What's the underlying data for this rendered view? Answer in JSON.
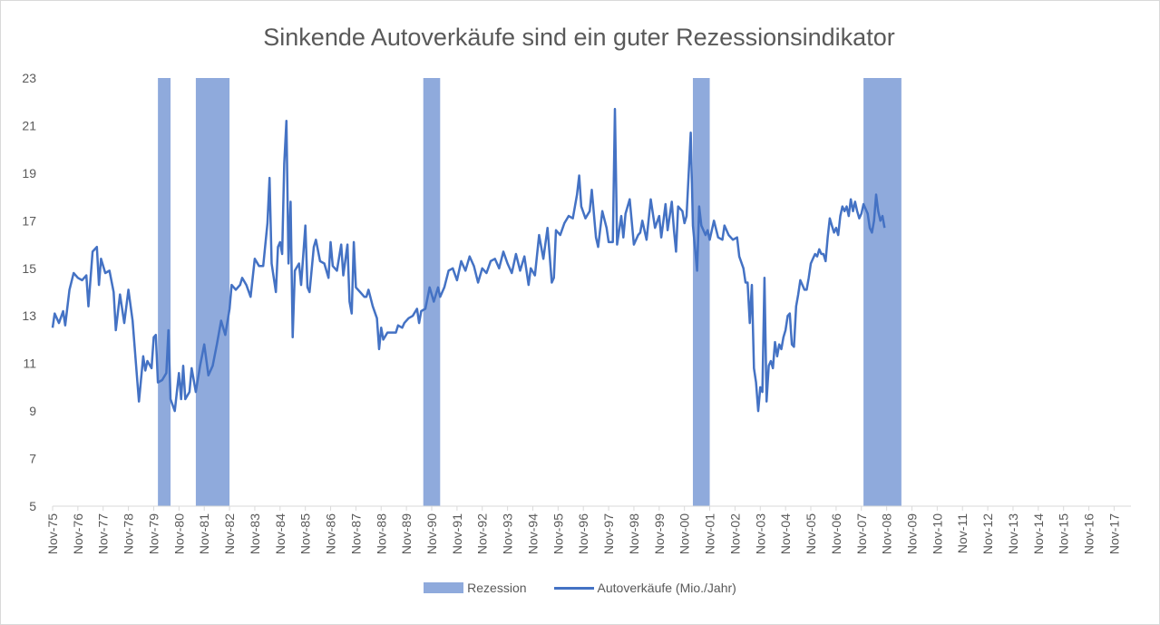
{
  "chart_data": {
    "type": "line",
    "title": "Sinkende Autoverkäufe sind ein guter Rezessionsindikator",
    "ylim": [
      5,
      23
    ],
    "yticks": [
      5,
      7,
      9,
      11,
      13,
      15,
      17,
      19,
      21,
      23
    ],
    "x_start": "Nov-75",
    "x_end": "Jul-18",
    "grid": false,
    "legend_position": "bottom",
    "x_tick_labels": [
      "Nov-75",
      "Nov-76",
      "Nov-77",
      "Nov-78",
      "Nov-79",
      "Nov-80",
      "Nov-81",
      "Nov-82",
      "Nov-83",
      "Nov-84",
      "Nov-85",
      "Nov-86",
      "Nov-87",
      "Nov-88",
      "Nov-89",
      "Nov-90",
      "Nov-91",
      "Nov-92",
      "Nov-93",
      "Nov-94",
      "Nov-95",
      "Nov-96",
      "Nov-97",
      "Nov-98",
      "Nov-99",
      "Nov-00",
      "Nov-01",
      "Nov-02",
      "Nov-03",
      "Nov-04",
      "Nov-05",
      "Nov-06",
      "Nov-07",
      "Nov-08",
      "Nov-09",
      "Nov-10",
      "Nov-11",
      "Nov-12",
      "Nov-13",
      "Nov-14",
      "Nov-15",
      "Nov-16",
      "Nov-17"
    ],
    "recessions": [
      {
        "start": "Jan-80",
        "end": "Jul-80"
      },
      {
        "start": "Jul-81",
        "end": "Nov-82"
      },
      {
        "start": "Jul-90",
        "end": "Mar-91"
      },
      {
        "start": "Mar-01",
        "end": "Nov-01"
      },
      {
        "start": "Dec-07",
        "end": "Jun-09"
      }
    ],
    "series": [
      {
        "name": "Autoverkäufe (Mio./Jahr)",
        "type": "line",
        "color": "#4472c4",
        "points": [
          [
            "Nov-75",
            12.5
          ],
          [
            "Dec-75",
            13.1
          ],
          [
            "Feb-76",
            12.7
          ],
          [
            "Apr-76",
            13.2
          ],
          [
            "May-76",
            12.6
          ],
          [
            "Jul-76",
            14.1
          ],
          [
            "Sep-76",
            14.8
          ],
          [
            "Nov-76",
            14.6
          ],
          [
            "Jan-77",
            14.5
          ],
          [
            "Mar-77",
            14.7
          ],
          [
            "Apr-77",
            13.4
          ],
          [
            "Jun-77",
            15.7
          ],
          [
            "Aug-77",
            15.9
          ],
          [
            "Sep-77",
            14.3
          ],
          [
            "Oct-77",
            15.4
          ],
          [
            "Dec-77",
            14.8
          ],
          [
            "Feb-78",
            14.9
          ],
          [
            "Apr-78",
            14.0
          ],
          [
            "May-78",
            12.4
          ],
          [
            "Jul-78",
            13.9
          ],
          [
            "Sep-78",
            12.7
          ],
          [
            "Nov-78",
            14.1
          ],
          [
            "Jan-79",
            12.8
          ],
          [
            "Mar-79",
            10.5
          ],
          [
            "Apr-79",
            9.4
          ],
          [
            "Jun-79",
            11.3
          ],
          [
            "Jul-79",
            10.7
          ],
          [
            "Aug-79",
            11.1
          ],
          [
            "Oct-79",
            10.8
          ],
          [
            "Nov-79",
            12.1
          ],
          [
            "Dec-79",
            12.2
          ],
          [
            "Jan-80",
            10.2
          ],
          [
            "Mar-80",
            10.3
          ],
          [
            "May-80",
            10.6
          ],
          [
            "Jun-80",
            12.4
          ],
          [
            "Jul-80",
            9.5
          ],
          [
            "Sep-80",
            9.0
          ],
          [
            "Nov-80",
            10.6
          ],
          [
            "Dec-80",
            9.5
          ],
          [
            "Jan-81",
            10.9
          ],
          [
            "Feb-81",
            9.5
          ],
          [
            "Apr-81",
            9.8
          ],
          [
            "May-81",
            10.8
          ],
          [
            "Jul-81",
            9.8
          ],
          [
            "Sep-81",
            10.9
          ],
          [
            "Nov-81",
            11.8
          ],
          [
            "Jan-82",
            10.5
          ],
          [
            "Mar-82",
            10.9
          ],
          [
            "May-82",
            11.8
          ],
          [
            "Jul-82",
            12.8
          ],
          [
            "Sep-82",
            12.2
          ],
          [
            "Nov-82",
            13.3
          ],
          [
            "Dec-82",
            14.3
          ],
          [
            "Feb-83",
            14.1
          ],
          [
            "Apr-83",
            14.3
          ],
          [
            "May-83",
            14.6
          ],
          [
            "Jul-83",
            14.3
          ],
          [
            "Sep-83",
            13.8
          ],
          [
            "Nov-83",
            15.4
          ],
          [
            "Jan-84",
            15.1
          ],
          [
            "Mar-84",
            15.1
          ],
          [
            "May-84",
            16.9
          ],
          [
            "Jun-84",
            18.8
          ],
          [
            "Jul-84",
            15.2
          ],
          [
            "Sep-84",
            14.0
          ],
          [
            "Oct-84",
            15.9
          ],
          [
            "Nov-84",
            16.1
          ],
          [
            "Dec-84",
            15.6
          ],
          [
            "Jan-85",
            19.4
          ],
          [
            "Feb-85",
            21.2
          ],
          [
            "Mar-85",
            15.2
          ],
          [
            "Apr-85",
            17.8
          ],
          [
            "May-85",
            12.1
          ],
          [
            "Jun-85",
            14.9
          ],
          [
            "Aug-85",
            15.2
          ],
          [
            "Sep-85",
            14.3
          ],
          [
            "Nov-85",
            16.8
          ],
          [
            "Dec-85",
            14.2
          ],
          [
            "Jan-86",
            14.0
          ],
          [
            "Mar-86",
            15.9
          ],
          [
            "Apr-86",
            16.2
          ],
          [
            "Jun-86",
            15.3
          ],
          [
            "Aug-86",
            15.2
          ],
          [
            "Oct-86",
            14.6
          ],
          [
            "Nov-86",
            16.1
          ],
          [
            "Dec-86",
            15.1
          ],
          [
            "Feb-87",
            14.9
          ],
          [
            "Apr-87",
            16.0
          ],
          [
            "May-87",
            14.7
          ],
          [
            "Jul-87",
            16.0
          ],
          [
            "Aug-87",
            13.6
          ],
          [
            "Sep-87",
            13.1
          ],
          [
            "Oct-87",
            16.1
          ],
          [
            "Nov-87",
            14.2
          ],
          [
            "Jan-88",
            14.0
          ],
          [
            "Mar-88",
            13.8
          ],
          [
            "Apr-88",
            13.8
          ],
          [
            "May-88",
            14.1
          ],
          [
            "Jul-88",
            13.4
          ],
          [
            "Sep-88",
            12.9
          ],
          [
            "Oct-88",
            11.6
          ],
          [
            "Nov-88",
            12.5
          ],
          [
            "Dec-88",
            12.0
          ],
          [
            "Feb-89",
            12.3
          ],
          [
            "Apr-89",
            12.3
          ],
          [
            "Jun-89",
            12.3
          ],
          [
            "Jul-89",
            12.6
          ],
          [
            "Sep-89",
            12.5
          ],
          [
            "Oct-89",
            12.7
          ],
          [
            "Dec-89",
            12.9
          ],
          [
            "Feb-90",
            13.0
          ],
          [
            "Apr-90",
            13.3
          ],
          [
            "May-90",
            12.7
          ],
          [
            "Jun-90",
            13.2
          ],
          [
            "Aug-90",
            13.3
          ],
          [
            "Oct-90",
            14.2
          ],
          [
            "Dec-90",
            13.6
          ],
          [
            "Feb-91",
            14.2
          ],
          [
            "Mar-91",
            13.8
          ],
          [
            "May-91",
            14.2
          ],
          [
            "Jul-91",
            14.9
          ],
          [
            "Sep-91",
            15.0
          ],
          [
            "Nov-91",
            14.5
          ],
          [
            "Jan-92",
            15.3
          ],
          [
            "Mar-92",
            14.9
          ],
          [
            "May-92",
            15.5
          ],
          [
            "Jul-92",
            15.1
          ],
          [
            "Sep-92",
            14.4
          ],
          [
            "Nov-92",
            15.0
          ],
          [
            "Jan-93",
            14.8
          ],
          [
            "Mar-93",
            15.3
          ],
          [
            "May-93",
            15.4
          ],
          [
            "Jul-93",
            15.0
          ],
          [
            "Sep-93",
            15.7
          ],
          [
            "Nov-93",
            15.2
          ],
          [
            "Jan-94",
            14.8
          ],
          [
            "Mar-94",
            15.6
          ],
          [
            "May-94",
            14.9
          ],
          [
            "Jul-94",
            15.5
          ],
          [
            "Sep-94",
            14.3
          ],
          [
            "Oct-94",
            15.0
          ],
          [
            "Dec-94",
            14.7
          ],
          [
            "Feb-95",
            16.4
          ],
          [
            "Apr-95",
            15.4
          ],
          [
            "Jun-95",
            16.7
          ],
          [
            "Aug-95",
            14.4
          ],
          [
            "Sep-95",
            14.6
          ],
          [
            "Oct-95",
            16.6
          ],
          [
            "Dec-95",
            16.4
          ],
          [
            "Feb-96",
            16.9
          ],
          [
            "Apr-96",
            17.2
          ],
          [
            "Jun-96",
            17.1
          ],
          [
            "Aug-96",
            18.1
          ],
          [
            "Sep-96",
            18.9
          ],
          [
            "Oct-96",
            17.6
          ],
          [
            "Dec-96",
            17.1
          ],
          [
            "Feb-97",
            17.4
          ],
          [
            "Mar-97",
            18.3
          ],
          [
            "May-97",
            16.3
          ],
          [
            "Jun-97",
            15.9
          ],
          [
            "Aug-97",
            17.4
          ],
          [
            "Oct-97",
            16.7
          ],
          [
            "Nov-97",
            16.1
          ],
          [
            "Jan-98",
            16.1
          ],
          [
            "Feb-98",
            21.7
          ],
          [
            "Mar-98",
            16.0
          ],
          [
            "May-98",
            17.2
          ],
          [
            "Jun-98",
            16.3
          ],
          [
            "Jul-98",
            17.3
          ],
          [
            "Sep-98",
            17.9
          ],
          [
            "Nov-98",
            16.0
          ],
          [
            "Jan-99",
            16.4
          ],
          [
            "Feb-99",
            16.5
          ],
          [
            "Mar-99",
            17.0
          ],
          [
            "May-99",
            16.2
          ],
          [
            "Jul-99",
            17.9
          ],
          [
            "Sep-99",
            16.7
          ],
          [
            "Nov-99",
            17.2
          ],
          [
            "Dec-99",
            16.3
          ],
          [
            "Jan-00",
            17.0
          ],
          [
            "Feb-00",
            17.7
          ],
          [
            "Mar-00",
            16.6
          ],
          [
            "May-00",
            17.8
          ],
          [
            "Jun-00",
            16.6
          ],
          [
            "Jul-00",
            15.7
          ],
          [
            "Aug-00",
            17.6
          ],
          [
            "Oct-00",
            17.4
          ],
          [
            "Nov-00",
            16.9
          ],
          [
            "Dec-00",
            17.2
          ],
          [
            "Feb-01",
            20.7
          ],
          [
            "Mar-01",
            16.8
          ],
          [
            "May-01",
            14.9
          ],
          [
            "Jun-01",
            17.6
          ],
          [
            "Jul-01",
            16.8
          ],
          [
            "Sep-01",
            16.4
          ],
          [
            "Oct-01",
            16.6
          ],
          [
            "Nov-01",
            16.2
          ],
          [
            "Jan-02",
            17.0
          ],
          [
            "Mar-02",
            16.3
          ],
          [
            "May-02",
            16.2
          ],
          [
            "Jun-02",
            16.8
          ],
          [
            "Aug-02",
            16.4
          ],
          [
            "Oct-02",
            16.2
          ],
          [
            "Dec-02",
            16.3
          ],
          [
            "Jan-03",
            15.5
          ],
          [
            "Mar-03",
            15.0
          ],
          [
            "Apr-03",
            14.4
          ],
          [
            "May-03",
            14.4
          ],
          [
            "Jun-03",
            12.7
          ],
          [
            "Jul-03",
            14.3
          ],
          [
            "Aug-03",
            10.8
          ],
          [
            "Sep-03",
            10.2
          ],
          [
            "Oct-03",
            9.0
          ],
          [
            "Nov-03",
            10.0
          ],
          [
            "Dec-03",
            9.8
          ],
          [
            "Jan-04",
            14.6
          ],
          [
            "Feb-04",
            9.4
          ],
          [
            "Mar-04",
            10.9
          ],
          [
            "Apr-04",
            11.1
          ],
          [
            "May-04",
            10.8
          ],
          [
            "Jun-04",
            11.9
          ],
          [
            "Jul-04",
            11.3
          ],
          [
            "Aug-04",
            11.8
          ],
          [
            "Sep-04",
            11.6
          ],
          [
            "Oct-04",
            12.1
          ],
          [
            "Nov-04",
            12.4
          ],
          [
            "Dec-04",
            13.0
          ],
          [
            "Jan-05",
            13.1
          ],
          [
            "Feb-05",
            11.8
          ],
          [
            "Mar-05",
            11.7
          ],
          [
            "Apr-05",
            13.4
          ],
          [
            "May-05",
            13.9
          ],
          [
            "Jun-05",
            14.5
          ],
          [
            "Jul-05",
            14.3
          ],
          [
            "Aug-05",
            14.1
          ],
          [
            "Sep-05",
            14.1
          ],
          [
            "Oct-05",
            14.6
          ],
          [
            "Nov-05",
            15.2
          ],
          [
            "Dec-05",
            15.4
          ],
          [
            "Jan-06",
            15.6
          ],
          [
            "Feb-06",
            15.5
          ],
          [
            "Mar-06",
            15.8
          ],
          [
            "Apr-06",
            15.6
          ],
          [
            "May-06",
            15.6
          ],
          [
            "Jun-06",
            15.3
          ],
          [
            "Jul-06",
            16.3
          ],
          [
            "Aug-06",
            17.1
          ],
          [
            "Sep-06",
            16.8
          ],
          [
            "Oct-06",
            16.5
          ],
          [
            "Nov-06",
            16.7
          ],
          [
            "Dec-06",
            16.4
          ],
          [
            "Jan-07",
            17.2
          ],
          [
            "Feb-07",
            17.6
          ],
          [
            "Mar-07",
            17.4
          ],
          [
            "Apr-07",
            17.6
          ],
          [
            "May-07",
            17.2
          ],
          [
            "Jun-07",
            17.9
          ],
          [
            "Jul-07",
            17.4
          ],
          [
            "Aug-07",
            17.8
          ],
          [
            "Sep-07",
            17.4
          ],
          [
            "Oct-07",
            17.1
          ],
          [
            "Nov-07",
            17.3
          ],
          [
            "Dec-07",
            17.7
          ],
          [
            "Jan-08",
            17.5
          ],
          [
            "Feb-08",
            17.3
          ],
          [
            "Mar-08",
            16.7
          ],
          [
            "Apr-08",
            16.5
          ],
          [
            "May-08",
            17.0
          ],
          [
            "Jun-08",
            18.1
          ],
          [
            "Jul-08",
            17.4
          ],
          [
            "Aug-08",
            17.0
          ],
          [
            "Sep-08",
            17.2
          ],
          [
            "Oct-08",
            16.7
          ]
        ]
      }
    ]
  },
  "legend": {
    "recession_label": "Rezession",
    "line_label": "Autoverkäufe (Mio./Jahr)",
    "recession_color": "#8faadc",
    "line_color": "#4472c4"
  }
}
